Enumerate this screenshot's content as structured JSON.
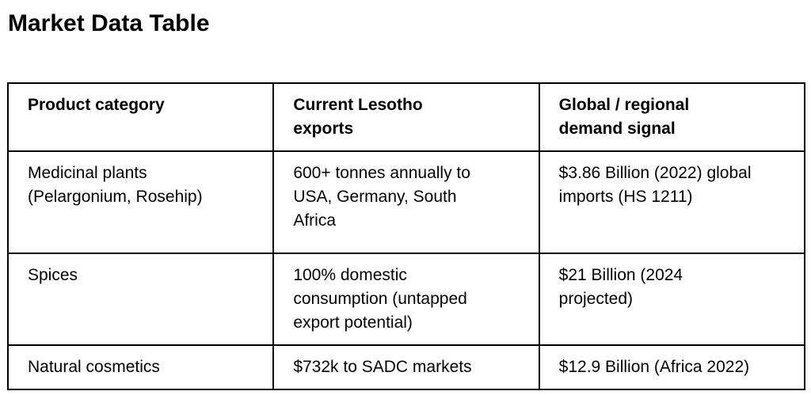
{
  "page": {
    "title": "Market Data Table"
  },
  "table": {
    "columns": [
      "Product category",
      "Current Lesotho\nexports",
      "Global / regional\ndemand signal"
    ],
    "rows": [
      [
        "Medicinal plants\n(Pelargonium, Rosehip)",
        "600+ tonnes annually to\nUSA, Germany, South\nAfrica",
        "$3.86 Billion (2022) global\nimports (HS 1211)"
      ],
      [
        "Spices",
        "100% domestic\nconsumption (untapped\nexport potential)",
        "$21 Billion (2024\nprojected)"
      ],
      [
        "Natural cosmetics",
        "$732k to SADC markets",
        "$12.9 Billion (Africa 2022)"
      ]
    ]
  },
  "colors": {
    "background": "#ffffff",
    "text": "#000000",
    "border": "#000000"
  }
}
